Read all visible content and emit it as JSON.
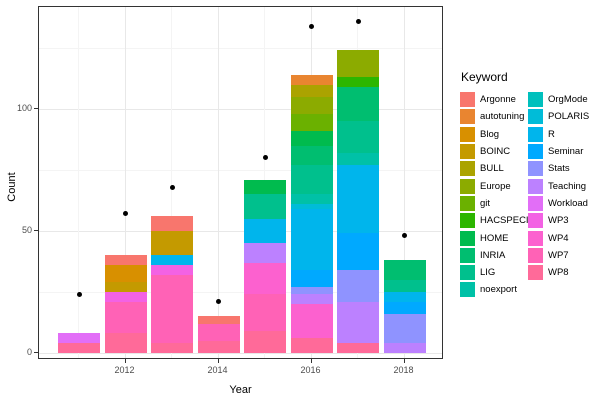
{
  "chart_data": {
    "type": "bar",
    "stacked": true,
    "xlabel": "Year",
    "ylabel": "Count",
    "legend_title": "Keyword",
    "x_ticks": [
      2012,
      2014,
      2016,
      2018
    ],
    "y_ticks": [
      0,
      50,
      100
    ],
    "y_minor_gridlines": [
      25,
      75,
      125
    ],
    "x_minor_gridlines": [
      2011,
      2013,
      2015,
      2017
    ],
    "ylim": [
      0,
      141
    ],
    "xlim": [
      2010.5,
      2018.6
    ],
    "grid": true,
    "legend_position": "right",
    "keywords": [
      {
        "label": "Argonne",
        "color": "#F8766D"
      },
      {
        "label": "autotuning",
        "color": "#E98530"
      },
      {
        "label": "Blog",
        "color": "#D89000"
      },
      {
        "label": "BOINC",
        "color": "#C49A00"
      },
      {
        "label": "BULL",
        "color": "#ABA300"
      },
      {
        "label": "Europe",
        "color": "#8CAB00"
      },
      {
        "label": "git",
        "color": "#6BB100"
      },
      {
        "label": "HACSPECIS",
        "color": "#2CB600"
      },
      {
        "label": "HOME",
        "color": "#00BB4E"
      },
      {
        "label": "INRIA",
        "color": "#00BE70"
      },
      {
        "label": "LIG",
        "color": "#00C08D"
      },
      {
        "label": "noexport",
        "color": "#00C1A7"
      },
      {
        "label": "OrgMode",
        "color": "#00C0BD"
      },
      {
        "label": "POLARIS",
        "color": "#00BCD8"
      },
      {
        "label": "R",
        "color": "#00B5EC"
      },
      {
        "label": "Seminar",
        "color": "#00A9FF"
      },
      {
        "label": "Stats",
        "color": "#8F93FF"
      },
      {
        "label": "Teaching",
        "color": "#BC81FF"
      },
      {
        "label": "Workload",
        "color": "#E26EF7"
      },
      {
        "label": "WP3",
        "color": "#F362E4"
      },
      {
        "label": "WP4",
        "color": "#FC61CF"
      },
      {
        "label": "WP7",
        "color": "#FF62B6"
      },
      {
        "label": "WP8",
        "color": "#FF6A99"
      }
    ],
    "bars": [
      {
        "year": 2011,
        "total": 8,
        "point": 24,
        "segments": [
          [
            "WP8",
            4
          ],
          [
            "Workload",
            4
          ]
        ]
      },
      {
        "year": 2012,
        "total": 40,
        "point": 57,
        "segments": [
          [
            "WP8",
            8
          ],
          [
            "WP7",
            13
          ],
          [
            "WP3",
            4
          ],
          [
            "BOINC",
            4
          ],
          [
            "Blog",
            7
          ],
          [
            "Argonne",
            4
          ]
        ]
      },
      {
        "year": 2013,
        "total": 56,
        "point": 68,
        "segments": [
          [
            "WP8",
            4
          ],
          [
            "WP7",
            28
          ],
          [
            "WP3",
            4
          ],
          [
            "R",
            4
          ],
          [
            "BOINC",
            10
          ],
          [
            "Argonne",
            6
          ]
        ]
      },
      {
        "year": 2014,
        "total": 15,
        "point": 21,
        "segments": [
          [
            "WP8",
            5
          ],
          [
            "WP7",
            7
          ],
          [
            "Argonne",
            3
          ]
        ]
      },
      {
        "year": 2015,
        "total": 71,
        "point": 80,
        "segments": [
          [
            "WP8",
            9
          ],
          [
            "WP7",
            15
          ],
          [
            "WP4",
            13
          ],
          [
            "Teaching",
            8
          ],
          [
            "R",
            10
          ],
          [
            "LIG",
            10
          ],
          [
            "HOME",
            6
          ]
        ]
      },
      {
        "year": 2016,
        "total": 114,
        "point": 134,
        "segments": [
          [
            "WP8",
            6
          ],
          [
            "WP4",
            14
          ],
          [
            "Teaching",
            4
          ],
          [
            "Stats",
            3
          ],
          [
            "Seminar",
            7
          ],
          [
            "R",
            25
          ],
          [
            "POLARIS",
            2
          ],
          [
            "noexport",
            4
          ],
          [
            "LIG",
            12
          ],
          [
            "INRIA",
            8
          ],
          [
            "HOME",
            6
          ],
          [
            "git",
            7
          ],
          [
            "Europe",
            7
          ],
          [
            "BULL",
            5
          ],
          [
            "autotuning",
            4
          ]
        ]
      },
      {
        "year": 2017,
        "total": 124,
        "point": 136,
        "segments": [
          [
            "WP8",
            4
          ],
          [
            "Teaching",
            17
          ],
          [
            "Stats",
            13
          ],
          [
            "Seminar",
            15
          ],
          [
            "R",
            28
          ],
          [
            "noexport",
            5
          ],
          [
            "LIG",
            13
          ],
          [
            "INRIA",
            14
          ],
          [
            "HACSPECIS",
            4
          ],
          [
            "Europe",
            11
          ]
        ]
      },
      {
        "year": 2018,
        "total": 38,
        "point": 48,
        "segments": [
          [
            "Teaching",
            4
          ],
          [
            "Stats",
            12
          ],
          [
            "Seminar",
            5
          ],
          [
            "R",
            4
          ],
          [
            "LIG",
            5
          ],
          [
            "INRIA",
            8
          ]
        ]
      }
    ]
  }
}
